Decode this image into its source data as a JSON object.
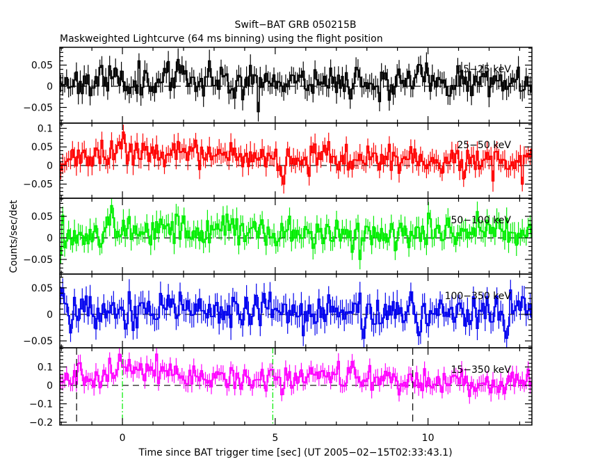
{
  "chart_data": {
    "type": "line",
    "title": "Swift−BAT GRB 050215B",
    "subtitle": "Maskweighted Lightcurve (64 ms binning) using the flight position",
    "xlabel": "Time since BAT trigger time [sec] (UT 2005−02−15T02:33:43.1)",
    "ylabel": "Counts/sec/det",
    "xlim": [
      -2.05,
      13.4
    ],
    "bin_width_sec": 0.064,
    "x_ticks": [
      {
        "value": 0,
        "label": "0"
      },
      {
        "value": 5,
        "label": "5"
      },
      {
        "value": 10,
        "label": "10"
      }
    ],
    "x_minor_step": 1,
    "vertical_markers": [
      {
        "t": -1.5,
        "color": "#000000",
        "style": "dashed"
      },
      {
        "t": 0.0,
        "color": "#00ee00",
        "style": "dashdot"
      },
      {
        "t": 4.92,
        "color": "#00ee00",
        "style": "dashdot"
      },
      {
        "t": 9.5,
        "color": "#000000",
        "style": "dashed"
      }
    ],
    "grid": false,
    "series": [
      {
        "name": "15−25 keV",
        "color": "#000000",
        "ylim": [
          -0.087,
          0.092
        ],
        "y_ticks": [
          {
            "value": 0.05,
            "label": "0.05"
          },
          {
            "value": 0,
            "label": "0"
          },
          {
            "value": -0.05,
            "label": "−0.05"
          }
        ],
        "y_minor_step": 0.01,
        "noise": 0.019,
        "err": 0.022,
        "seed": 11,
        "trend": [
          [
            -2.05,
            0.012
          ],
          [
            0,
            0.015
          ],
          [
            2,
            0.018
          ],
          [
            4,
            0.012
          ],
          [
            6,
            0.015
          ],
          [
            8,
            0.012
          ],
          [
            10,
            0.01
          ],
          [
            13.4,
            0.01
          ]
        ],
        "spikes": [
          [
            4.45,
            -0.06
          ],
          [
            2.85,
            0.06
          ],
          [
            9.95,
            0.055
          ]
        ]
      },
      {
        "name": "25−50 keV",
        "color": "#ff0000",
        "ylim": [
          -0.088,
          0.114
        ],
        "y_ticks": [
          {
            "value": 0.1,
            "label": "0.1"
          },
          {
            "value": 0.05,
            "label": "0.05"
          },
          {
            "value": 0,
            "label": "0"
          },
          {
            "value": -0.05,
            "label": "−0.05"
          }
        ],
        "y_minor_step": 0.01,
        "noise": 0.019,
        "err": 0.024,
        "seed": 23,
        "trend": [
          [
            -2.05,
            0.008
          ],
          [
            -1,
            0.018
          ],
          [
            -0.3,
            0.025
          ],
          [
            0,
            0.055
          ],
          [
            0.3,
            0.05
          ],
          [
            1,
            0.03
          ],
          [
            2,
            0.03
          ],
          [
            3,
            0.022
          ],
          [
            5,
            0.02
          ],
          [
            7,
            0.018
          ],
          [
            9,
            0.015
          ],
          [
            11,
            0.015
          ],
          [
            13.4,
            0.012
          ]
        ],
        "spikes": [
          [
            0.05,
            0.09
          ],
          [
            5.3,
            -0.05
          ],
          [
            13.1,
            -0.05
          ]
        ]
      },
      {
        "name": "50−100 keV",
        "color": "#00ee00",
        "ylim": [
          -0.084,
          0.092
        ],
        "y_ticks": [
          {
            "value": 0.05,
            "label": "0.05"
          },
          {
            "value": 0,
            "label": "0"
          },
          {
            "value": -0.05,
            "label": "−0.05"
          }
        ],
        "y_minor_step": 0.01,
        "noise": 0.019,
        "err": 0.022,
        "seed": 37,
        "trend": [
          [
            -2.05,
            0.005
          ],
          [
            -1,
            0.012
          ],
          [
            -0.5,
            0.025
          ],
          [
            0,
            0.022
          ],
          [
            1,
            0.02
          ],
          [
            2,
            0.02
          ],
          [
            4,
            0.015
          ],
          [
            6,
            0.01
          ],
          [
            8,
            0.005
          ],
          [
            10,
            0.012
          ],
          [
            12,
            0.012
          ],
          [
            13.4,
            0.01
          ]
        ],
        "spikes": [
          [
            -0.35,
            0.075
          ],
          [
            7.8,
            -0.05
          ],
          [
            -2.0,
            -0.04
          ]
        ]
      },
      {
        "name": "100−350 keV",
        "color": "#0000ee",
        "ylim": [
          -0.063,
          0.076
        ],
        "y_ticks": [
          {
            "value": 0.05,
            "label": "0.05"
          },
          {
            "value": 0,
            "label": "0"
          },
          {
            "value": -0.05,
            "label": "−0.05"
          }
        ],
        "y_minor_step": 0.01,
        "noise": 0.018,
        "err": 0.02,
        "seed": 53,
        "trend": [
          [
            -2.05,
            0.01
          ],
          [
            0,
            0.008
          ],
          [
            3,
            0.006
          ],
          [
            6,
            0.005
          ],
          [
            9,
            0.004
          ],
          [
            13.4,
            0.006
          ]
        ],
        "spikes": [
          [
            -1.95,
            0.05
          ],
          [
            -1.7,
            -0.035
          ],
          [
            7.9,
            -0.045
          ],
          [
            12.6,
            -0.045
          ]
        ]
      },
      {
        "name": "15−350 keV",
        "color": "#ff00ff",
        "ylim": [
          -0.215,
          0.204
        ],
        "y_ticks": [
          {
            "value": 0.1,
            "label": "0.1"
          },
          {
            "value": 0,
            "label": "0"
          },
          {
            "value": -0.1,
            "label": "−0.1"
          },
          {
            "value": -0.2,
            "label": "−0.2"
          }
        ],
        "y_minor_step": 0.02,
        "noise": 0.035,
        "err": 0.04,
        "seed": 71,
        "trend": [
          [
            -2.05,
            0.03
          ],
          [
            -1,
            0.05
          ],
          [
            -0.3,
            0.08
          ],
          [
            0,
            0.09
          ],
          [
            1,
            0.085
          ],
          [
            2,
            0.06
          ],
          [
            3,
            0.05
          ],
          [
            4,
            0.035
          ],
          [
            5,
            0.035
          ],
          [
            7,
            0.045
          ],
          [
            9,
            0.03
          ],
          [
            11,
            0.02
          ],
          [
            12.5,
            0.005
          ],
          [
            13.4,
            0.02
          ]
        ],
        "spikes": [
          [
            1.1,
            0.17
          ],
          [
            7.05,
            0.13
          ]
        ]
      }
    ]
  }
}
